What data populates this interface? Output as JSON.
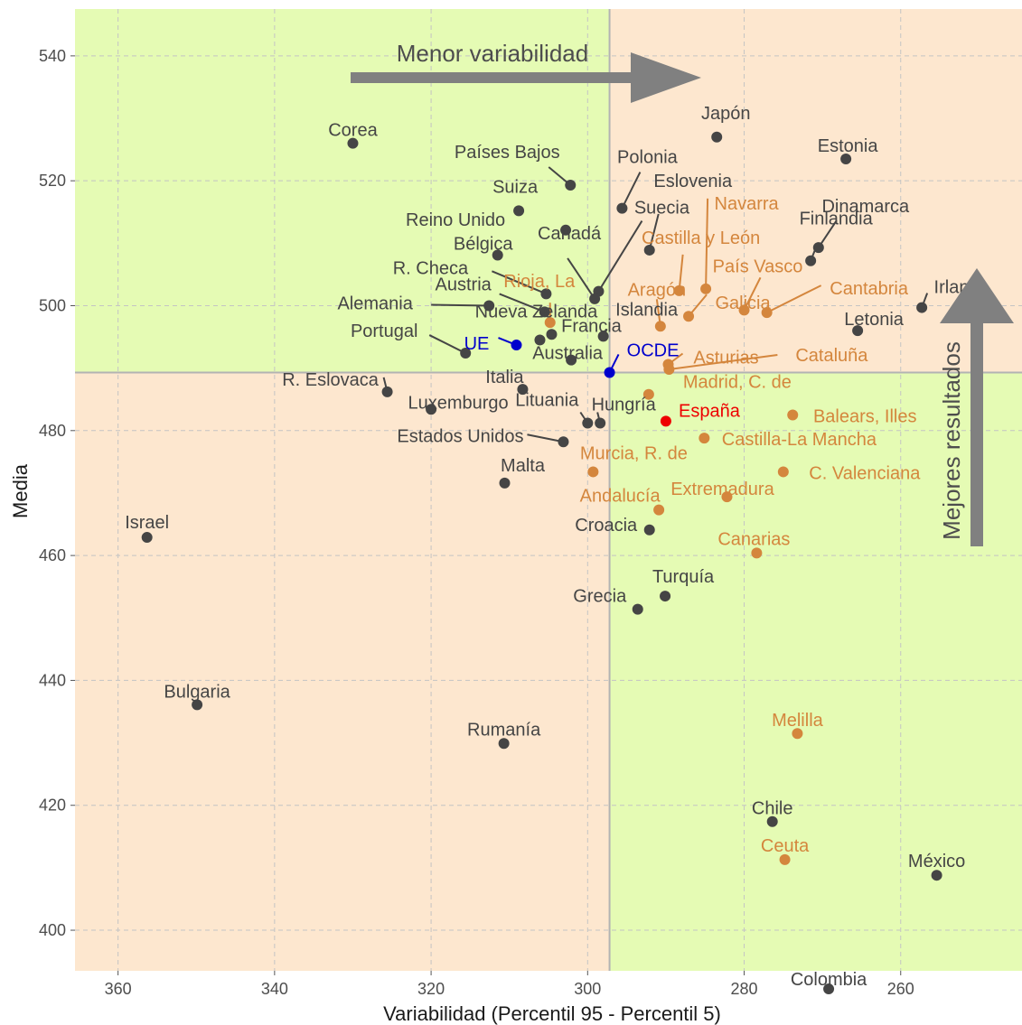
{
  "chart_data": {
    "type": "scatter",
    "xlabel": "Variabilidad (Percentil 95 - Percentil 5)",
    "ylabel": "Media",
    "x_reversed": true,
    "xlim": [
      365.5,
      244.5
    ],
    "ylim": [
      393.5,
      547.5
    ],
    "x_ticks": [
      360,
      340,
      320,
      300,
      280,
      260
    ],
    "y_ticks": [
      400,
      420,
      440,
      460,
      480,
      500,
      520,
      540
    ],
    "grid": true,
    "reference_lines": {
      "x": 297.2,
      "y": 489.3
    },
    "quadrant_colors": {
      "favorable": "#e5fbb4",
      "unfavorable": "#fde7cf"
    },
    "series_colors": {
      "pais": "#454545",
      "ccaa": "#d4863d",
      "promedio": "#0000cd",
      "espana": "#ee0000"
    },
    "annotations": {
      "arrow_x": "Menor variabilidad",
      "arrow_y": "Mejores resultados"
    },
    "points": [
      {
        "name": "Corea",
        "x": 330,
        "y": 526,
        "group": "pais"
      },
      {
        "name": "Japón",
        "x": 283.5,
        "y": 527,
        "group": "pais"
      },
      {
        "name": "Estonia",
        "x": 267,
        "y": 523.5,
        "group": "pais"
      },
      {
        "name": "Países Bajos",
        "x": 302.2,
        "y": 519.3,
        "group": "pais"
      },
      {
        "name": "Polonia",
        "x": 295.6,
        "y": 515.6,
        "group": "pais"
      },
      {
        "name": "Suiza",
        "x": 308.8,
        "y": 515.2,
        "group": "pais"
      },
      {
        "name": "Canadá",
        "x": 302.8,
        "y": 512.1,
        "group": "pais"
      },
      {
        "name": "Eslovenia",
        "x": 292.1,
        "y": 508.9,
        "group": "pais"
      },
      {
        "name": "Dinamarca",
        "x": 270.5,
        "y": 509.3,
        "group": "pais"
      },
      {
        "name": "Bélgica",
        "x": 311.5,
        "y": 508.1,
        "group": "pais"
      },
      {
        "name": "Finlandia",
        "x": 271.5,
        "y": 507.2,
        "group": "pais"
      },
      {
        "name": "Suecia",
        "x": 298.6,
        "y": 502.3,
        "group": "pais"
      },
      {
        "name": "R. Checa",
        "x": 305.3,
        "y": 501.9,
        "group": "pais"
      },
      {
        "name": "Reino Unido",
        "x": 299.1,
        "y": 501.1,
        "group": "pais"
      },
      {
        "name": "Alemania",
        "x": 312.6,
        "y": 500.0,
        "group": "pais"
      },
      {
        "name": "Irlanda",
        "x": 257.3,
        "y": 499.7,
        "group": "pais"
      },
      {
        "name": "Austria",
        "x": 305.5,
        "y": 499.0,
        "group": "pais"
      },
      {
        "name": "Letonia",
        "x": 265.5,
        "y": 496.0,
        "group": "pais"
      },
      {
        "name": "Francia",
        "x": 304.6,
        "y": 495.4,
        "group": "pais"
      },
      {
        "name": "Islandia",
        "x": 298.0,
        "y": 495.1,
        "group": "pais"
      },
      {
        "name": "Nueva Zelanda",
        "x": 306.1,
        "y": 494.5,
        "group": "pais"
      },
      {
        "name": "Portugal",
        "x": 315.6,
        "y": 492.4,
        "group": "pais"
      },
      {
        "name": "Australia",
        "x": 302.1,
        "y": 491.3,
        "group": "pais"
      },
      {
        "name": "R. Eslovaca",
        "x": 325.6,
        "y": 486.2,
        "group": "pais"
      },
      {
        "name": "Italia",
        "x": 308.3,
        "y": 486.6,
        "group": "pais"
      },
      {
        "name": "Luxemburgo",
        "x": 320.0,
        "y": 483.4,
        "group": "pais"
      },
      {
        "name": "Lituania",
        "x": 300.0,
        "y": 481.2,
        "group": "pais"
      },
      {
        "name": "Hungría",
        "x": 298.4,
        "y": 481.2,
        "group": "pais"
      },
      {
        "name": "Estados Unidos",
        "x": 303.1,
        "y": 478.2,
        "group": "pais"
      },
      {
        "name": "Malta",
        "x": 310.6,
        "y": 471.6,
        "group": "pais"
      },
      {
        "name": "Israel",
        "x": 356.3,
        "y": 462.9,
        "group": "pais"
      },
      {
        "name": "Croacia",
        "x": 292.1,
        "y": 464.1,
        "group": "pais"
      },
      {
        "name": "Turquía",
        "x": 290.1,
        "y": 453.5,
        "group": "pais"
      },
      {
        "name": "Grecia",
        "x": 293.6,
        "y": 451.4,
        "group": "pais"
      },
      {
        "name": "Bulgaria",
        "x": 349.9,
        "y": 436.1,
        "group": "pais"
      },
      {
        "name": "Rumanía",
        "x": 310.7,
        "y": 429.9,
        "group": "pais"
      },
      {
        "name": "Chile",
        "x": 276.4,
        "y": 417.4,
        "group": "pais"
      },
      {
        "name": "México",
        "x": 255.4,
        "y": 408.8,
        "group": "pais"
      },
      {
        "name": "Colombia",
        "x": 269.2,
        "y": 390.6,
        "group": "pais"
      },
      {
        "name": "Navarra",
        "x": 284.9,
        "y": 502.7,
        "group": "ccaa"
      },
      {
        "name": "Castilla y León",
        "x": 288.3,
        "y": 502.4,
        "group": "ccaa"
      },
      {
        "name": "País Vasco",
        "x": 280.0,
        "y": 499.3,
        "group": "ccaa"
      },
      {
        "name": "Cantabria",
        "x": 277.1,
        "y": 498.9,
        "group": "ccaa"
      },
      {
        "name": "Galicia",
        "x": 287.1,
        "y": 498.3,
        "group": "ccaa"
      },
      {
        "name": "Rioja, La",
        "x": 304.8,
        "y": 497.3,
        "group": "ccaa"
      },
      {
        "name": "Aragón",
        "x": 290.7,
        "y": 496.7,
        "group": "ccaa"
      },
      {
        "name": "Asturias",
        "x": 289.7,
        "y": 490.6,
        "group": "ccaa"
      },
      {
        "name": "Cataluña",
        "x": 289.6,
        "y": 489.8,
        "group": "ccaa"
      },
      {
        "name": "Madrid, C. de",
        "x": 292.2,
        "y": 485.8,
        "group": "ccaa"
      },
      {
        "name": "Balears, Illes",
        "x": 273.8,
        "y": 482.5,
        "group": "ccaa"
      },
      {
        "name": "Castilla-La Mancha",
        "x": 285.1,
        "y": 478.8,
        "group": "ccaa"
      },
      {
        "name": "Murcia, R. de",
        "x": 299.3,
        "y": 473.4,
        "group": "ccaa"
      },
      {
        "name": "C. Valenciana",
        "x": 275.0,
        "y": 473.4,
        "group": "ccaa"
      },
      {
        "name": "Extremadura",
        "x": 282.2,
        "y": 469.4,
        "group": "ccaa"
      },
      {
        "name": "Andalucía",
        "x": 290.9,
        "y": 467.3,
        "group": "ccaa"
      },
      {
        "name": "Canarias",
        "x": 278.4,
        "y": 460.4,
        "group": "ccaa"
      },
      {
        "name": "Melilla",
        "x": 273.2,
        "y": 431.5,
        "group": "ccaa"
      },
      {
        "name": "Ceuta",
        "x": 274.8,
        "y": 411.3,
        "group": "ccaa"
      },
      {
        "name": "UE",
        "x": 309.1,
        "y": 493.7,
        "group": "promedio"
      },
      {
        "name": "OCDE",
        "x": 297.2,
        "y": 489.3,
        "group": "promedio"
      },
      {
        "name": "España",
        "x": 290.0,
        "y": 481.5,
        "group": "espana"
      }
    ]
  }
}
